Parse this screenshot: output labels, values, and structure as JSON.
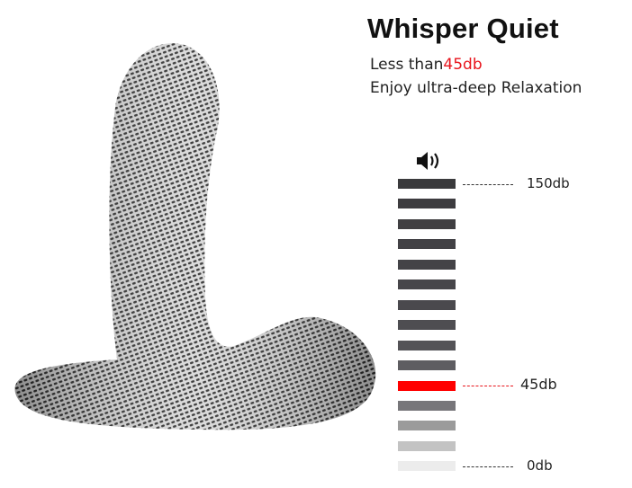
{
  "header": {
    "title": "Whisper Quiet",
    "line1_prefix": "Less than",
    "line1_value": "45db",
    "line2": "Enjoy ultra-deep  Relaxation"
  },
  "meter": {
    "icon": "speaker-volume-icon",
    "bar_count": 15,
    "highlight_index": 10,
    "highlight_color": "#ff0000",
    "bar_colors": [
      "#3a3a3c",
      "#3d3c3f",
      "#403f42",
      "#424145",
      "#444347",
      "#47464a",
      "#4a494d",
      "#4e4d51",
      "#545357",
      "#5e5d61",
      "#ff0000",
      "#77767a",
      "#9b9b9b",
      "#c3c3c3",
      "#ececec"
    ],
    "labels": {
      "top": "150db",
      "mid": "45db",
      "bottom": "0db"
    }
  }
}
